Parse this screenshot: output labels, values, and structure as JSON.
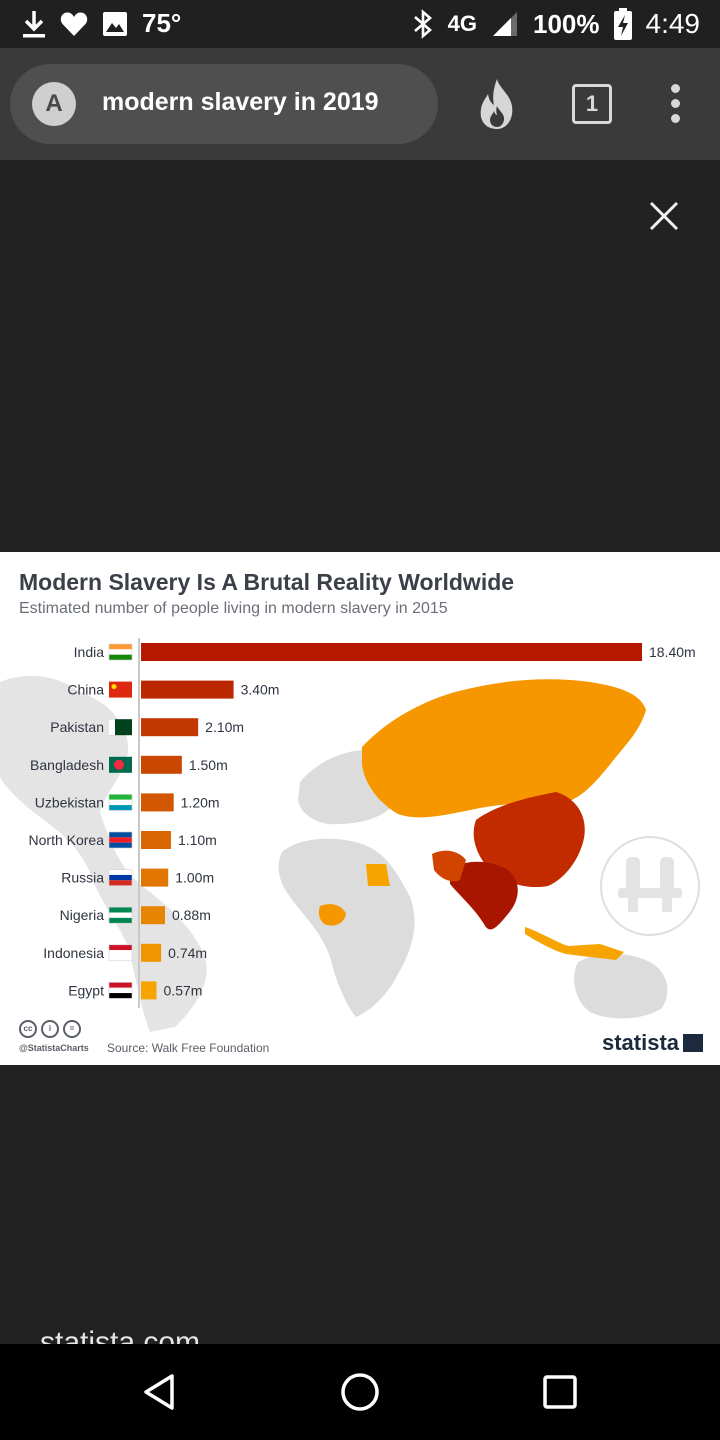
{
  "status_bar": {
    "temperature": "75°",
    "network": "4G",
    "battery": "100%",
    "time": "4:49"
  },
  "browser": {
    "avatar_letter": "A",
    "search_query": "modern slavery in 2019",
    "tab_count": "1"
  },
  "infographic": {
    "footer_handle": "@StatistaCharts",
    "source": "Source: Walk Free Foundation",
    "brand": "statista"
  },
  "caption_peek": "statista.com",
  "colors": {
    "bar_high": "#b31a00",
    "bar_mid": "#e05400",
    "bar_low": "#f7a400",
    "map_land": "#dfdfdf"
  },
  "chart_data": {
    "type": "bar",
    "orientation": "horizontal",
    "title": "Modern Slavery Is A Brutal Reality Worldwide",
    "subtitle": "Estimated number of people living in modern slavery in 2015",
    "categories": [
      "India",
      "China",
      "Pakistan",
      "Bangladesh",
      "Uzbekistan",
      "North Korea",
      "Russia",
      "Nigeria",
      "Indonesia",
      "Egypt"
    ],
    "values": [
      18.4,
      3.4,
      2.1,
      1.5,
      1.2,
      1.1,
      1.0,
      0.88,
      0.74,
      0.57
    ],
    "value_labels": [
      "18.40m",
      "3.40m",
      "2.10m",
      "1.50m",
      "1.20m",
      "1.10m",
      "1.00m",
      "0.88m",
      "0.74m",
      "0.57m"
    ],
    "unit": "m",
    "xlim": [
      0,
      18.4
    ],
    "grid": false,
    "legend": "none"
  }
}
